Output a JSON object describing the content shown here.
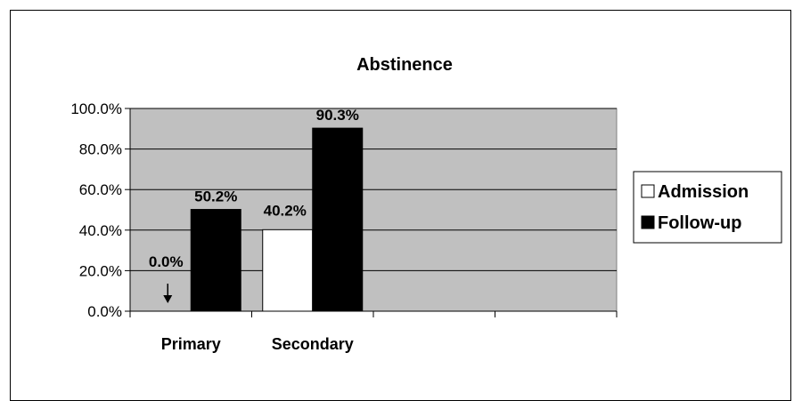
{
  "chart_data": {
    "type": "bar",
    "title": "Abstinence",
    "categories": [
      "Primary",
      "Secondary",
      "",
      ""
    ],
    "series": [
      {
        "name": "Admission",
        "color": "#ffffff",
        "values": [
          0.0,
          40.2,
          null,
          null
        ]
      },
      {
        "name": "Follow-up",
        "color": "#000000",
        "values": [
          50.2,
          90.3,
          null,
          null
        ]
      }
    ],
    "data_labels": {
      "Admission": [
        "0.0%",
        "40.2%"
      ],
      "Follow-up": [
        "50.2%",
        "90.3%"
      ]
    },
    "y_ticks": [
      "0.0%",
      "20.0%",
      "40.0%",
      "60.0%",
      "80.0%",
      "100.0%"
    ],
    "ylim": [
      0,
      100
    ],
    "grid": true,
    "plot_background": "#c0c0c0",
    "legend_position": "right",
    "annotation": "down-arrow-at-zero"
  }
}
